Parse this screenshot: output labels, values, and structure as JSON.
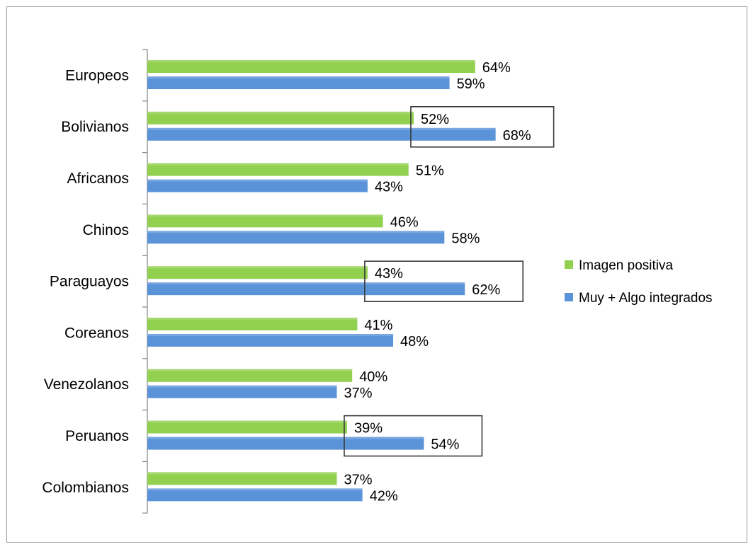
{
  "chart_data": {
    "type": "bar",
    "orientation": "horizontal",
    "categories": [
      "Europeos",
      "Bolivianos",
      "Africanos",
      "Chinos",
      "Paraguayos",
      "Coreanos",
      "Venezolanos",
      "Peruanos",
      "Colombianos"
    ],
    "series": [
      {
        "name": "Imagen positiva",
        "color": "#92d050",
        "values": [
          64,
          52,
          51,
          46,
          43,
          41,
          40,
          39,
          37
        ],
        "labels": [
          "64%",
          "52%",
          "51%",
          "46%",
          "43%",
          "41%",
          "40%",
          "39%",
          "37%"
        ]
      },
      {
        "name": "Muy + Algo integrados",
        "color": "#5b93d9",
        "values": [
          59,
          68,
          43,
          58,
          62,
          48,
          37,
          54,
          42
        ],
        "labels": [
          "59%",
          "68%",
          "43%",
          "58%",
          "62%",
          "48%",
          "37%",
          "54%",
          "42%"
        ]
      }
    ],
    "xlim": [
      0,
      100
    ],
    "value_unit": "%",
    "grid": false,
    "legend": {
      "position": "right",
      "entries": [
        "Imagen positiva",
        "Muy + Algo integrados"
      ]
    },
    "highlighted_categories": [
      "Bolivianos",
      "Paraguayos",
      "Peruanos"
    ],
    "title": "",
    "xlabel": "",
    "ylabel": ""
  }
}
